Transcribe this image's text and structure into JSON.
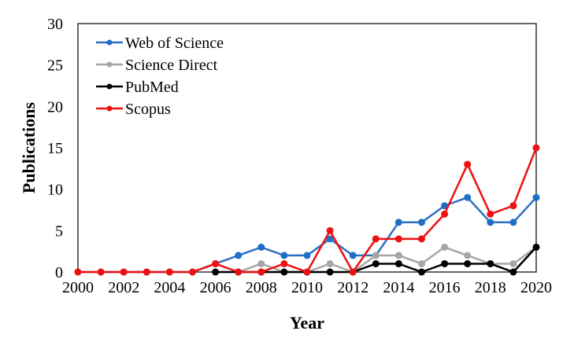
{
  "chart_data": {
    "type": "line",
    "title": "",
    "xlabel": "Year",
    "ylabel": "Publications",
    "x": [
      2000,
      2001,
      2002,
      2003,
      2004,
      2005,
      2006,
      2007,
      2008,
      2009,
      2010,
      2011,
      2012,
      2013,
      2014,
      2015,
      2016,
      2017,
      2018,
      2019,
      2020
    ],
    "xticks": [
      "2000",
      "2002",
      "2004",
      "2006",
      "2008",
      "2010",
      "2012",
      "2014",
      "2016",
      "2018",
      "2020"
    ],
    "yticks": [
      "0",
      "5",
      "10",
      "15",
      "20",
      "25",
      "30"
    ],
    "xlim": [
      2000,
      2020
    ],
    "ylim": [
      0,
      30
    ],
    "grid": false,
    "legend_position": "top-left",
    "series": [
      {
        "name": "Web of Science",
        "color": "#2f6fc0",
        "marker": "#1f6fc8",
        "values": [
          0,
          0,
          0,
          0,
          0,
          0,
          1,
          2,
          3,
          2,
          2,
          4,
          2,
          2,
          6,
          6,
          8,
          9,
          6,
          6,
          9
        ]
      },
      {
        "name": "Science Direct",
        "color": "#a6a6a6",
        "marker": "#a6a6a6",
        "values": [
          null,
          null,
          null,
          null,
          null,
          null,
          null,
          0,
          1,
          0,
          0,
          1,
          0,
          2,
          2,
          1,
          3,
          2,
          1,
          1,
          3
        ]
      },
      {
        "name": "PubMed",
        "color": "#000000",
        "marker": "#000000",
        "values": [
          null,
          null,
          null,
          null,
          null,
          null,
          0,
          0,
          0,
          0,
          0,
          0,
          0,
          1,
          1,
          0,
          1,
          1,
          1,
          0,
          3
        ]
      },
      {
        "name": "Scopus",
        "color": "#ee1111",
        "marker": "#ee1111",
        "values": [
          0,
          0,
          0,
          0,
          0,
          0,
          1,
          0,
          0,
          1,
          0,
          5,
          0,
          4,
          4,
          4,
          7,
          13,
          7,
          8,
          15
        ]
      }
    ]
  }
}
